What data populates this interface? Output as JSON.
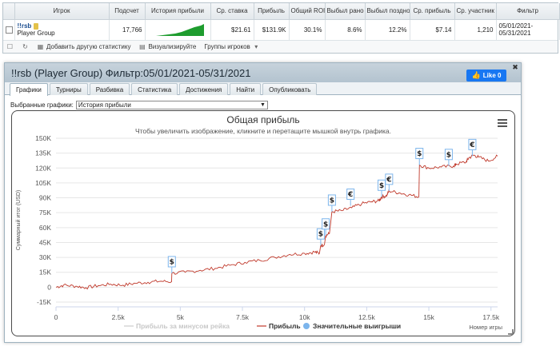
{
  "table": {
    "headers": [
      "",
      "Игрок",
      "Подсчет",
      "История прибыли",
      "Ср. ставка",
      "Прибыль",
      "Общий ROI",
      "Выбыл рано",
      "Выбыл поздно",
      "Ср. прибыль",
      "Ср. участник",
      "Фильтр"
    ],
    "row": {
      "player": "!!rsb",
      "group": "Player Group",
      "count": "17,766",
      "avg_stake": "$21.61",
      "profit": "$131.9K",
      "roi": "30.1%",
      "early": "8.6%",
      "late": "12.2%",
      "avg_profit": "$7.14",
      "avg_entrants": "1,210",
      "filter_line1": "05/01/2021-",
      "filter_line2": "05/31/2021"
    },
    "footer": {
      "add_stat": "Добавить другую статистику",
      "visualize": "Визуализируйте",
      "groups": "Группы игроков"
    }
  },
  "panel": {
    "title": "!!rsb (Player Group) Фильтр:05/01/2021-05/31/2021",
    "like_label": "Like 0",
    "tabs": [
      "Графики",
      "Турниры",
      "Разбивка",
      "Статистика",
      "Достижения",
      "Найти",
      "Опубликовать"
    ],
    "select_label": "Выбранные графики:",
    "select_value": "История прибыли"
  },
  "colors": {
    "profit_line": "#c0392b",
    "rake_line": "#cccccc",
    "wins_marker": "#7cb5ec",
    "header_bg": "#b3c3cf",
    "like_bg": "#1877f2"
  },
  "chart_data": {
    "type": "line",
    "title": "Общая прибыль",
    "subtitle": "Чтобы увеличить изображение, кликните и перетащите мышкой внутрь графика.",
    "ylabel": "Суммарный итог (USD)",
    "xlabel": "Номер игры",
    "xlim": [
      0,
      17766
    ],
    "ylim": [
      -15000,
      150000
    ],
    "yticks": [
      "150K",
      "135K",
      "120K",
      "105K",
      "90K",
      "75K",
      "60K",
      "45K",
      "30K",
      "15K",
      "0",
      "-15K"
    ],
    "xticks": [
      "0",
      "2.5k",
      "5k",
      "7.5k",
      "10k",
      "12.5k",
      "15k",
      "17.5k"
    ],
    "legend": [
      "Прибыль за минусом рейка",
      "Прибыль",
      "Значительные выигрыши"
    ],
    "series": [
      {
        "name": "Прибыль",
        "points": [
          [
            0,
            0
          ],
          [
            300,
            2000
          ],
          [
            800,
            1000
          ],
          [
            1200,
            -500
          ],
          [
            1700,
            1500
          ],
          [
            2200,
            3000
          ],
          [
            2700,
            2000
          ],
          [
            3200,
            4000
          ],
          [
            3700,
            5000
          ],
          [
            4200,
            6000
          ],
          [
            4650,
            5500
          ],
          [
            4660,
            14000
          ],
          [
            5200,
            15000
          ],
          [
            5800,
            17000
          ],
          [
            6400,
            19000
          ],
          [
            7000,
            22000
          ],
          [
            7600,
            25000
          ],
          [
            8200,
            27000
          ],
          [
            8800,
            30000
          ],
          [
            9400,
            33000
          ],
          [
            10000,
            34000
          ],
          [
            10400,
            35500
          ],
          [
            10600,
            34000
          ],
          [
            10650,
            42000
          ],
          [
            10800,
            43000
          ],
          [
            10850,
            52000
          ],
          [
            11000,
            54000
          ],
          [
            11100,
            76000
          ],
          [
            11500,
            77000
          ],
          [
            11900,
            80000
          ],
          [
            12300,
            84000
          ],
          [
            12700,
            86000
          ],
          [
            13000,
            87000
          ],
          [
            13100,
            91000
          ],
          [
            13300,
            92000
          ],
          [
            13400,
            97000
          ],
          [
            13800,
            95000
          ],
          [
            14200,
            93000
          ],
          [
            14600,
            91000
          ],
          [
            14620,
            123000
          ],
          [
            15000,
            120000
          ],
          [
            15500,
            121000
          ],
          [
            16000,
            122000
          ],
          [
            16100,
            124000
          ],
          [
            16500,
            126000
          ],
          [
            16600,
            130000
          ],
          [
            16800,
            133000
          ],
          [
            17000,
            131000
          ],
          [
            17400,
            127000
          ],
          [
            17766,
            132000
          ]
        ]
      }
    ],
    "big_wins": [
      {
        "x": 4660,
        "y": 14000,
        "symbol": "$"
      },
      {
        "x": 10650,
        "y": 42000,
        "symbol": "$"
      },
      {
        "x": 10850,
        "y": 52000,
        "symbol": "$"
      },
      {
        "x": 11100,
        "y": 76000,
        "symbol": "$"
      },
      {
        "x": 11850,
        "y": 82000,
        "symbol": "€"
      },
      {
        "x": 13100,
        "y": 91000,
        "symbol": "$"
      },
      {
        "x": 13400,
        "y": 97000,
        "symbol": "€"
      },
      {
        "x": 14620,
        "y": 123000,
        "symbol": "$"
      },
      {
        "x": 15800,
        "y": 122000,
        "symbol": "$"
      },
      {
        "x": 16750,
        "y": 132000,
        "symbol": "€"
      }
    ]
  }
}
